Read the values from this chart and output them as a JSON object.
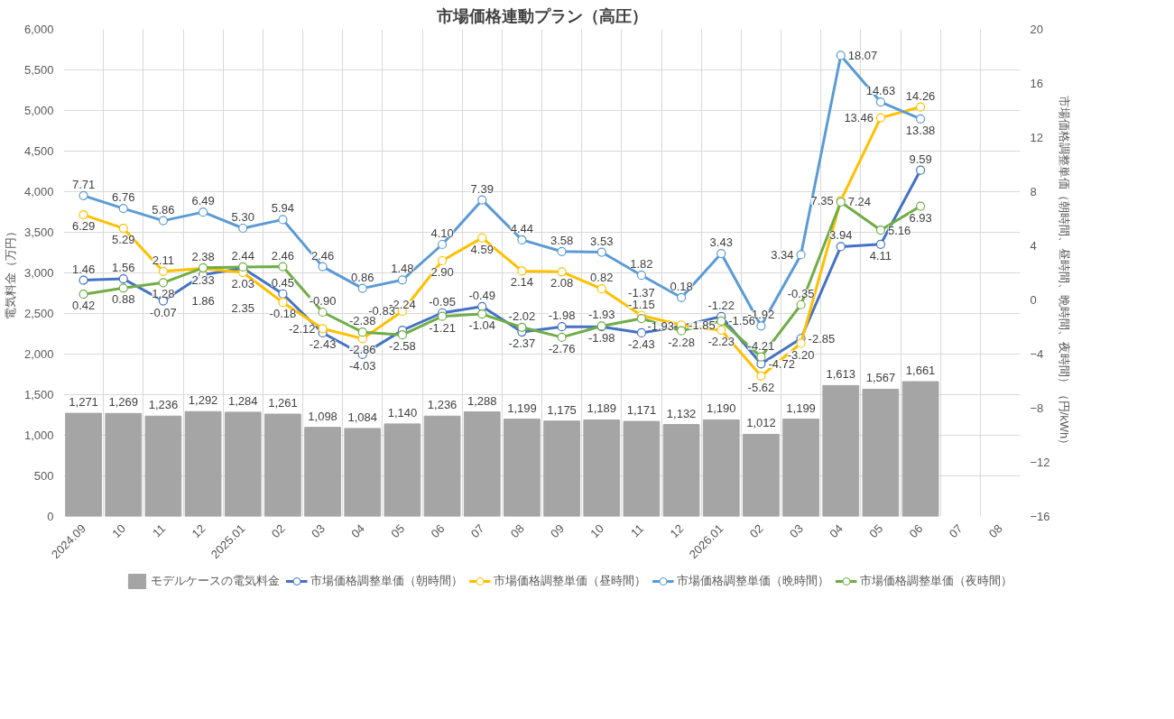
{
  "chart_data": {
    "type": "bar",
    "title": "市場価格連動プラン（高圧）",
    "ylabel": "電気料金（万円）",
    "y2label": "市場価格調整単価（朝時間、昼時間、晩時間、夜時間）（円/kWh）",
    "categories": [
      "2024.09",
      "10",
      "11",
      "12",
      "2025.01",
      "02",
      "03",
      "04",
      "05",
      "06",
      "07",
      "08",
      "09",
      "10",
      "11",
      "12",
      "2026.01",
      "02",
      "03",
      "04",
      "05",
      "06",
      "07",
      "08"
    ],
    "series": [
      {
        "name": "モデルケースの電気料金",
        "color": "#a5a5a5",
        "values": [
          1271,
          1269,
          1236,
          1292,
          1284,
          1261,
          1098,
          1084,
          1140,
          1236,
          1288,
          1199,
          1175,
          1189,
          1171,
          1132,
          1190,
          1012,
          1199,
          1613,
          1567,
          1661,
          null,
          null
        ],
        "value_labels": [
          "1,271",
          "1,269",
          "1,236",
          "1,292",
          "1,284",
          "1,261",
          "1,098",
          "1,084",
          "1,140",
          "1,236",
          "1,288",
          "1,199",
          "1,175",
          "1,189",
          "1,171",
          "1,132",
          "1,190",
          "1,012",
          "1,199",
          "1,613",
          "1,567",
          "1,661",
          null,
          null
        ]
      },
      {
        "name": "市場価格調整単価（朝時間）",
        "type": "line",
        "axis": "y2",
        "color": "#4472c4",
        "values": [
          1.46,
          1.56,
          -0.07,
          1.86,
          2.35,
          0.45,
          -2.43,
          -4.03,
          -2.24,
          -0.95,
          -0.49,
          -2.37,
          -1.98,
          -1.98,
          -2.43,
          -1.93,
          -1.22,
          -4.72,
          -2.85,
          3.94,
          4.11,
          9.59,
          null,
          null
        ],
        "value_labels": [
          "1.46",
          "1.56",
          "-0.07",
          "1.86",
          "2.35",
          "0.45",
          "-2.43",
          "-4.03",
          "-2.24",
          "-0.95",
          "-0.49",
          "-2.37",
          "-1.98",
          "-1.98",
          "-2.43",
          "-1.93",
          "-1.22",
          "-4.72",
          "-2.85",
          "3.94",
          "4.11",
          "9.59",
          null,
          null
        ]
      },
      {
        "name": "市場価格調整単価（昼時間）",
        "type": "line",
        "axis": "y2",
        "color": "#ffc000",
        "values": [
          6.29,
          5.29,
          2.11,
          2.33,
          2.03,
          -0.18,
          -2.12,
          -2.86,
          -0.83,
          2.9,
          4.59,
          2.14,
          2.08,
          0.82,
          -1.15,
          -1.85,
          -2.23,
          -5.62,
          -3.2,
          7.35,
          13.46,
          14.26,
          null,
          null
        ],
        "value_labels": [
          "6.29",
          "5.29",
          "2.11",
          "2.33",
          "2.03",
          "-0.18",
          "-2.12",
          "-2.86",
          "-0.83",
          "2.90",
          "4.59",
          "2.14",
          "2.08",
          "0.82",
          "-1.15",
          "-1.85",
          "-2.23",
          "-5.62",
          "-3.20",
          "7.35",
          "13.46",
          "14.26",
          null,
          null
        ]
      },
      {
        "name": "市場価格調整単価（晩時間）",
        "type": "line",
        "axis": "y2",
        "color": "#5b9bd5",
        "values": [
          7.71,
          6.76,
          5.86,
          6.49,
          5.3,
          5.94,
          2.46,
          0.86,
          1.48,
          4.1,
          7.39,
          4.44,
          3.58,
          3.53,
          1.82,
          0.18,
          3.43,
          -1.92,
          3.34,
          18.07,
          14.63,
          13.38,
          null,
          null
        ],
        "value_labels": [
          "7.71",
          "6.76",
          "5.86",
          "6.49",
          "5.30",
          "5.94",
          "2.46",
          "0.86",
          "1.48",
          "4.10",
          "7.39",
          "4.44",
          "3.58",
          "3.53",
          "1.82",
          "0.18",
          "3.43",
          "-1.92",
          "3.34",
          "18.07",
          "14.63",
          "13.38",
          null,
          null
        ]
      },
      {
        "name": "市場価格調整単価（夜時間）",
        "type": "line",
        "axis": "y2",
        "color": "#70ad47",
        "values": [
          0.42,
          0.88,
          1.28,
          2.38,
          2.44,
          2.46,
          -0.9,
          -2.38,
          -2.58,
          -1.21,
          -1.04,
          -2.02,
          -2.76,
          -1.93,
          -1.37,
          -2.28,
          -1.56,
          -4.21,
          -0.35,
          7.24,
          5.16,
          6.93,
          null,
          null
        ],
        "value_labels": [
          "0.42",
          "0.88",
          "1.28",
          "2.38",
          "2.44",
          "2.46",
          "-0.90",
          "-2.38",
          "-2.58",
          "-1.21",
          "-1.04",
          "-2.02",
          "-2.76",
          "-1.93",
          "-1.37",
          "-2.28",
          "-1.56",
          "-4.21",
          "-0.35",
          "7.24",
          "5.16",
          "6.93",
          null,
          null
        ]
      }
    ],
    "ylim": [
      0,
      6000
    ],
    "yticks": [
      {
        "value": 0,
        "label": "0"
      },
      {
        "value": 500,
        "label": "500"
      },
      {
        "value": 1000,
        "label": "1,000"
      },
      {
        "value": 1500,
        "label": "1,500"
      },
      {
        "value": 2000,
        "label": "2,000"
      },
      {
        "value": 2500,
        "label": "2,500"
      },
      {
        "value": 3000,
        "label": "3,000"
      },
      {
        "value": 3500,
        "label": "3,500"
      },
      {
        "value": 4000,
        "label": "4,000"
      },
      {
        "value": 4500,
        "label": "4,500"
      },
      {
        "value": 5000,
        "label": "5,000"
      },
      {
        "value": 5500,
        "label": "5,500"
      },
      {
        "value": 6000,
        "label": "6,000"
      }
    ],
    "y2lim": [
      -16,
      20
    ],
    "y2ticks": [
      -16,
      -12,
      -8,
      -4,
      0,
      4,
      8,
      12,
      16,
      20
    ],
    "grid": true,
    "legend": "bottom",
    "marker": "circle"
  }
}
